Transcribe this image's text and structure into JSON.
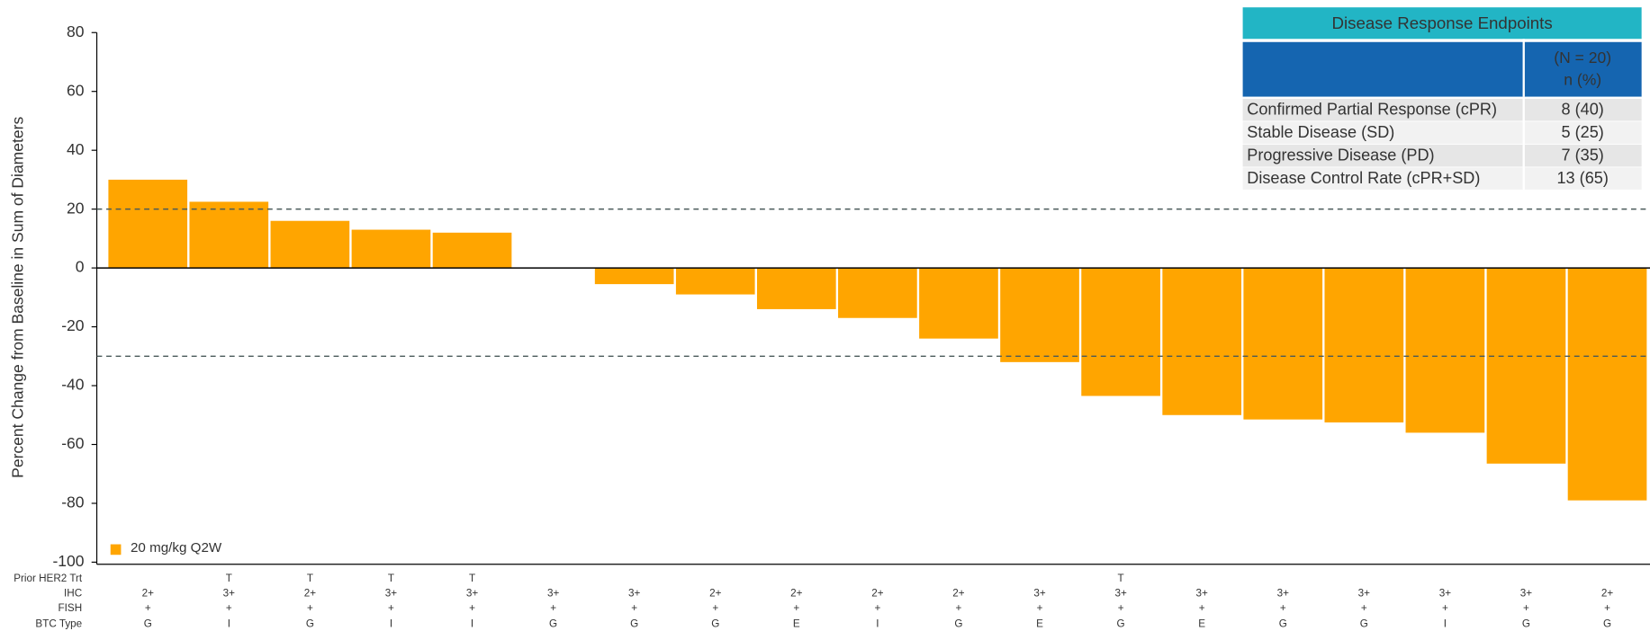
{
  "chart_data": {
    "type": "bar",
    "ylabel": "Percent Change from Baseline in Sum of Diameters",
    "values": [
      30,
      22.5,
      16,
      13,
      12,
      0,
      -5.5,
      -9,
      -14,
      -17,
      -24,
      -32,
      -43.5,
      -50,
      -51.5,
      -52.5,
      -56,
      -66.5,
      -79
    ],
    "color": "#ffa500",
    "ylim": [
      -100,
      80
    ],
    "yticks": [
      -100,
      -80,
      -60,
      -40,
      -20,
      0,
      20,
      40,
      60,
      80
    ],
    "reference_lines": [
      20,
      -30
    ],
    "legend": {
      "name": "20 mg/kg Q2W",
      "corner": "bottom-left"
    },
    "annotation_rows": [
      {
        "label": "Prior HER2 Trt",
        "values": [
          null,
          "T",
          "T",
          "T",
          "T",
          null,
          null,
          null,
          null,
          null,
          null,
          null,
          "T",
          null,
          null,
          null,
          null,
          null,
          null
        ]
      },
      {
        "label": "IHC",
        "values": [
          "2+",
          "3+",
          "2+",
          "3+",
          "3+",
          "3+",
          "3+",
          "2+",
          "2+",
          "2+",
          "2+",
          "3+",
          "3+",
          "3+",
          "3+",
          "3+",
          "3+",
          "3+",
          "2+"
        ]
      },
      {
        "label": "FISH",
        "values": [
          "+",
          "+",
          "+",
          "+",
          "+",
          "+",
          "+",
          "+",
          "+",
          "+",
          "+",
          "+",
          "+",
          "+",
          "+",
          "+",
          "+",
          "+",
          "+"
        ]
      },
      {
        "label": "BTC Type",
        "values": [
          "G",
          "I",
          "G",
          "I",
          "I",
          "G",
          "G",
          "G",
          "E",
          "I",
          "G",
          "E",
          "G",
          "E",
          "G",
          "G",
          "I",
          "G",
          "G"
        ]
      }
    ]
  },
  "table": {
    "title": "Disease Response Endpoints",
    "header": [
      "(N = 20)",
      "n (%)"
    ],
    "rows": [
      [
        "Confirmed Partial Response (cPR)",
        "8 (40)"
      ],
      [
        "Stable Disease (SD)",
        "5 (25)"
      ],
      [
        "Progressive Disease (PD)",
        "7 (35)"
      ],
      [
        "Disease Control Rate (cPR+SD)",
        "13 (65)"
      ]
    ]
  }
}
